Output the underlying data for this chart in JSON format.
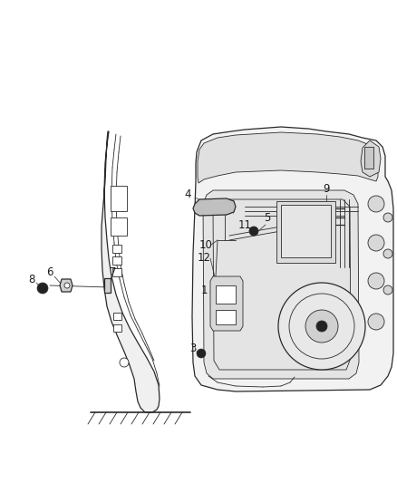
{
  "background_color": "#ffffff",
  "line_color": "#2a2a2a",
  "fig_width": 4.38,
  "fig_height": 5.33,
  "dpi": 100,
  "pillar_fill": "#f0f0f0",
  "door_fill": "#f2f2f2",
  "handle_fill": "#c0c0c0",
  "inner_fill": "#e8e8e8",
  "bracket_fill": "#d0d0d0",
  "dark_fill": "#222222"
}
